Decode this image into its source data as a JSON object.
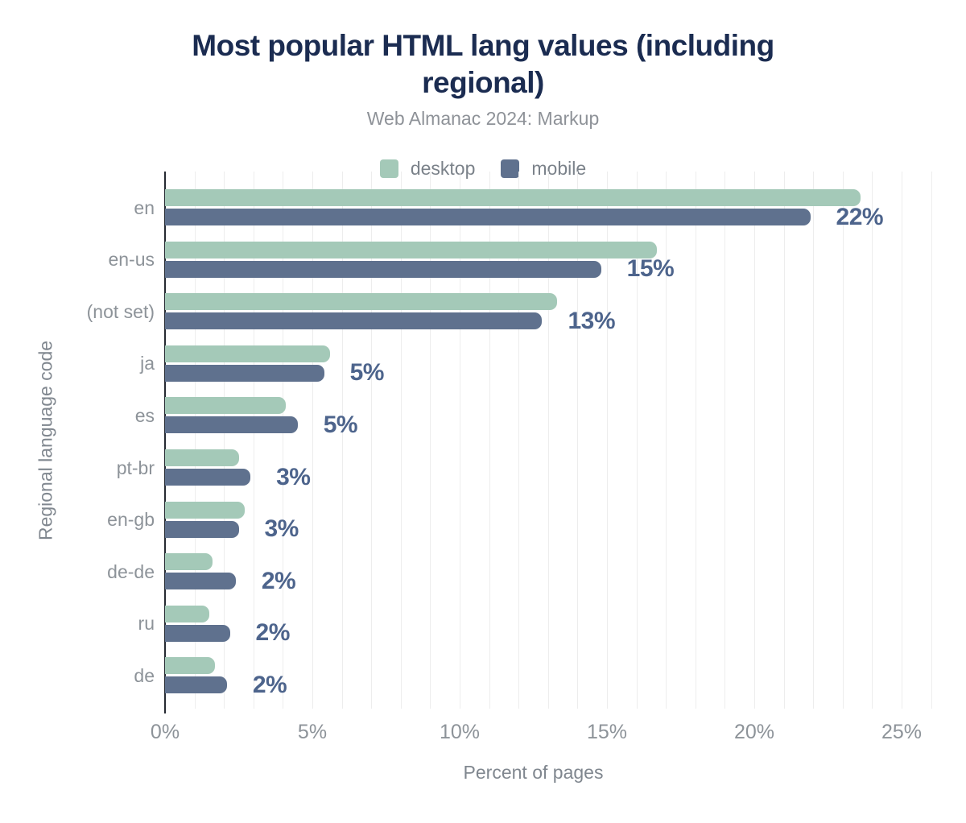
{
  "chart_data": {
    "type": "bar",
    "orientation": "horizontal",
    "title": "Most popular HTML lang values (including regional)",
    "title_lines": [
      "Most popular HTML lang values (including",
      "regional)"
    ],
    "subtitle": "Web Almanac 2024: Markup",
    "xlabel": "Percent of pages",
    "ylabel": "Regional language code",
    "categories": [
      "en",
      "en-us",
      "(not set)",
      "ja",
      "es",
      "pt-br",
      "en-gb",
      "de-de",
      "ru",
      "de"
    ],
    "series": [
      {
        "name": "desktop",
        "color": "#a4c9b8",
        "values": [
          23.6,
          16.7,
          13.3,
          5.6,
          4.1,
          2.5,
          2.7,
          1.6,
          1.5,
          1.7
        ]
      },
      {
        "name": "mobile",
        "color": "#5f718e",
        "values": [
          21.9,
          14.8,
          12.8,
          5.4,
          4.5,
          2.9,
          2.5,
          2.4,
          2.2,
          2.1
        ]
      }
    ],
    "bar_labels": [
      "22%",
      "15%",
      "13%",
      "5%",
      "5%",
      "3%",
      "3%",
      "2%",
      "2%",
      "2%"
    ],
    "x_ticks": [
      "0%",
      "5%",
      "10%",
      "15%",
      "20%",
      "25%"
    ],
    "x_tick_values": [
      0,
      5,
      10,
      15,
      20,
      25
    ],
    "xlim": [
      0,
      25
    ],
    "grid": "vertical minor gridlines every 1%",
    "legend_position": "top",
    "colors": {
      "title": "#1b2c51",
      "subtitle": "#8e9298",
      "value_label": "#4d648c",
      "axis_text": "#8d9399",
      "axis_line": "#262a32",
      "gridline": "#ededed",
      "background": "#ffffff"
    }
  }
}
